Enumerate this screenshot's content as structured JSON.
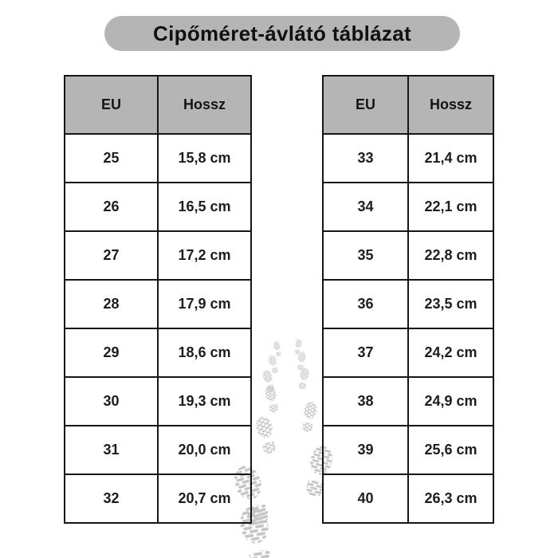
{
  "title": "Cipőméret-ávlátó táblázat",
  "colors": {
    "badge_bg": "#b5b5b5",
    "header_bg": "#b5b5b5",
    "border": "#161616",
    "text": "#1d1d1d",
    "footprint": "#c6c6c6",
    "page_bg": "#ffffff"
  },
  "chart_data": [
    {
      "type": "table",
      "title": "Cipőméret-ávlátó táblázat",
      "columns": [
        "EU",
        "Hossz"
      ],
      "rows": [
        [
          "25",
          "15,8 cm"
        ],
        [
          "26",
          "16,5 cm"
        ],
        [
          "27",
          "17,2 cm"
        ],
        [
          "28",
          "17,9 cm"
        ],
        [
          "29",
          "18,6 cm"
        ],
        [
          "30",
          "19,3 cm"
        ],
        [
          "31",
          "20,0 cm"
        ],
        [
          "32",
          "20,7 cm"
        ]
      ]
    },
    {
      "type": "table",
      "columns": [
        "EU",
        "Hossz"
      ],
      "rows": [
        [
          "33",
          "21,4 cm"
        ],
        [
          "34",
          "22,1 cm"
        ],
        [
          "35",
          "22,8 cm"
        ],
        [
          "36",
          "23,5 cm"
        ],
        [
          "37",
          "24,2 cm"
        ],
        [
          "38",
          "24,9 cm"
        ],
        [
          "39",
          "25,6 cm"
        ],
        [
          "40",
          "26,3 cm"
        ]
      ]
    }
  ],
  "decor": {
    "footprint_icon": "boot-print-trail",
    "footprint_count": 12
  }
}
